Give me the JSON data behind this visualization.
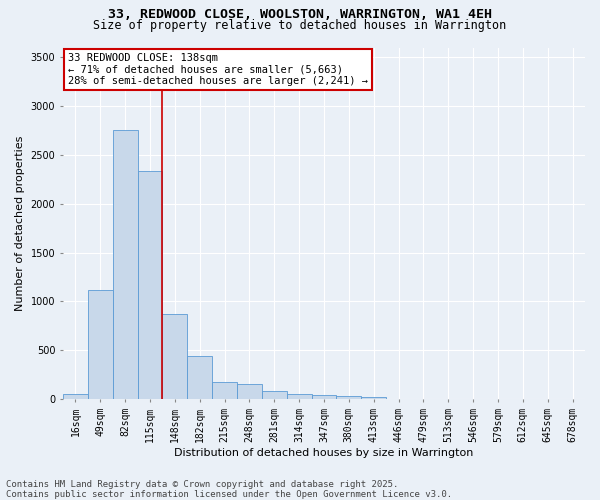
{
  "title_line1": "33, REDWOOD CLOSE, WOOLSTON, WARRINGTON, WA1 4EH",
  "title_line2": "Size of property relative to detached houses in Warrington",
  "xlabel": "Distribution of detached houses by size in Warrington",
  "ylabel": "Number of detached properties",
  "categories": [
    "16sqm",
    "49sqm",
    "82sqm",
    "115sqm",
    "148sqm",
    "182sqm",
    "215sqm",
    "248sqm",
    "281sqm",
    "314sqm",
    "347sqm",
    "380sqm",
    "413sqm",
    "446sqm",
    "479sqm",
    "513sqm",
    "546sqm",
    "579sqm",
    "612sqm",
    "645sqm",
    "678sqm"
  ],
  "values": [
    50,
    1120,
    2760,
    2340,
    870,
    445,
    170,
    155,
    85,
    55,
    40,
    30,
    20,
    5,
    5,
    0,
    0,
    0,
    0,
    0,
    0
  ],
  "bar_color": "#c8d8ea",
  "bar_edge_color": "#5b9bd5",
  "vline_color": "#cc0000",
  "vline_x_index": 3.5,
  "annotation_text": "33 REDWOOD CLOSE: 138sqm\n← 71% of detached houses are smaller (5,663)\n28% of semi-detached houses are larger (2,241) →",
  "annotation_box_edgecolor": "#cc0000",
  "ylim": [
    0,
    3600
  ],
  "yticks": [
    0,
    500,
    1000,
    1500,
    2000,
    2500,
    3000,
    3500
  ],
  "footer_line1": "Contains HM Land Registry data © Crown copyright and database right 2025.",
  "footer_line2": "Contains public sector information licensed under the Open Government Licence v3.0.",
  "bg_color": "#eaf0f7",
  "grid_color": "#ffffff",
  "title_fontsize": 9.5,
  "subtitle_fontsize": 8.5,
  "axis_label_fontsize": 8,
  "tick_fontsize": 7,
  "annotation_fontsize": 7.5,
  "footer_fontsize": 6.5
}
